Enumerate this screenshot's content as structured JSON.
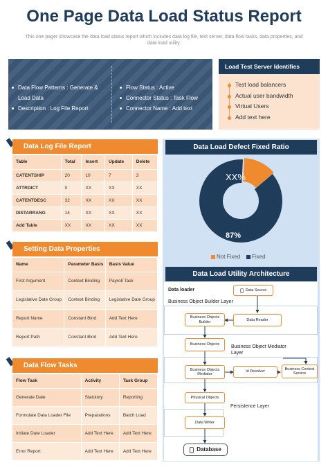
{
  "header": {
    "title": "One Page Data Load Status Report",
    "subtitle": "This one pager showcase the data load status report which includes data log file, test server, data flow tasks, data properties, and data load utility."
  },
  "hero": {
    "left": [
      "Data Flow Patterns : Generate &",
      "Load Data",
      "Description : Log File Report"
    ],
    "right": [
      "Flow Status : Active",
      "Connector Status : Task Flow",
      "Connector Name : Add text"
    ]
  },
  "load_test_server": {
    "title": "Load Test Server Identifies",
    "items": [
      "Test load balancers",
      "Actual user bandwidth",
      "Virtual Users",
      "Add text here"
    ]
  },
  "data_log": {
    "title": "Data Log File Report",
    "headers": [
      "Table",
      "Total",
      "Insert",
      "Update",
      "Delete"
    ],
    "rows": [
      [
        "CATENTSHIP",
        "20",
        "10",
        "7",
        "3"
      ],
      [
        "ATTRDICT",
        "0",
        "XX",
        "XX",
        "XX"
      ],
      [
        "CATENTDESC",
        "32",
        "XX",
        "XX",
        "XX"
      ],
      [
        "DISTARRANG",
        "14",
        "XX",
        "XX",
        "XX"
      ],
      [
        "Add Table",
        "XX",
        "XX",
        "XX",
        "XX"
      ]
    ]
  },
  "data_properties": {
    "title": "Setting Data Properties",
    "headers": [
      "Name",
      "Parameter Basis",
      "Basis Value"
    ],
    "rows": [
      [
        "First Argument",
        "Context Binding",
        "Payroll Task"
      ],
      [
        "Legislative Date Group",
        "Context Binding",
        "Legislative Date Group"
      ],
      [
        "Report Name",
        "Constant Bind",
        "Add Text Here"
      ],
      [
        "Report Path",
        "Constant Bind",
        "Add Text Here"
      ]
    ]
  },
  "data_flow": {
    "title": "Data Flow Tasks",
    "headers": [
      "Flow Task",
      "Activity",
      "Task Group"
    ],
    "rows": [
      [
        "Generate Date",
        "Statutory",
        "Reporting"
      ],
      [
        "Formulate Data Loader File",
        "Preparations",
        "Batch Load"
      ],
      [
        "Initiate Date Loader",
        "Add Text Here",
        "Add Text Here"
      ],
      [
        "Error Report",
        "Add Text Here",
        "Add Text Here"
      ]
    ]
  },
  "defect": {
    "title": "Data Load Defect Fixed Ratio",
    "not_fixed_label": "XX%",
    "fixed_label": "87%",
    "legend": [
      "Not Fixed",
      "Fixed"
    ],
    "colors": {
      "not_fixed": "#ef8a2e",
      "fixed": "#1f3c5a"
    },
    "chart_data": {
      "type": "pie",
      "categories": [
        "Not Fixed",
        "Fixed"
      ],
      "values": [
        13,
        87
      ]
    }
  },
  "architecture": {
    "title": "Data Load Utility Architecture",
    "data_loader": "Data loader",
    "builder_layer": "Business Object Builder Layer",
    "mediator_layer": "Business Object Mediator Layer",
    "persistence_layer": "Persistence Layer",
    "nodes": {
      "data_source": "Data Source",
      "bo_builder": "Business Objects Builder",
      "data_reader": "Data Reader",
      "bo": "Business Objects",
      "bo_mediator": "Business Objects Mediator",
      "id_resolver": "Id Resolver",
      "bcs": "Business Context Service",
      "physical": "Physical Objects",
      "data_writer": "Data Writer",
      "database": "Database"
    }
  }
}
